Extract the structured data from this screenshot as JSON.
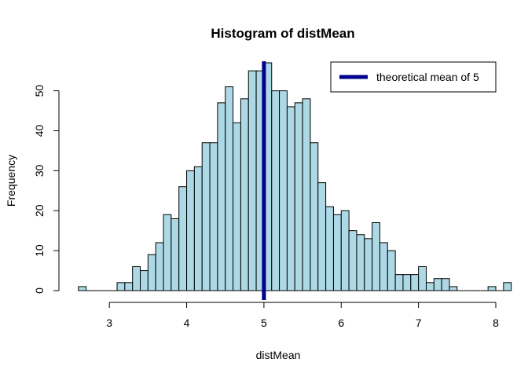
{
  "chart_data": {
    "type": "bar",
    "title": "Histogram of distMean",
    "xlabel": "distMean",
    "ylabel": "Frequency",
    "bin_width": 0.1,
    "bin_start": 2.6,
    "values": [
      1,
      0,
      0,
      0,
      0,
      2,
      2,
      6,
      5,
      9,
      12,
      19,
      18,
      26,
      30,
      31,
      37,
      37,
      47,
      51,
      42,
      48,
      55,
      55,
      57,
      50,
      50,
      46,
      47,
      48,
      37,
      27,
      21,
      19,
      20,
      15,
      14,
      13,
      17,
      12,
      10,
      4,
      4,
      4,
      6,
      2,
      3,
      3,
      1,
      0,
      0,
      0,
      0,
      1,
      0,
      2
    ],
    "xlim": [
      2.5,
      8.0
    ],
    "ylim": [
      0,
      57
    ],
    "x_ticks": [
      "3",
      "4",
      "5",
      "6",
      "7",
      "8"
    ],
    "y_ticks": [
      "0",
      "10",
      "20",
      "30",
      "40",
      "50"
    ],
    "bar_color": "#add8e6",
    "bar_border_color": "#000000",
    "mean_line": {
      "value": 5,
      "color": "#00008b",
      "label": "theoretical mean of 5"
    },
    "legend": {
      "placement": "top-right",
      "entries": [
        "theoretical mean of 5"
      ]
    }
  }
}
